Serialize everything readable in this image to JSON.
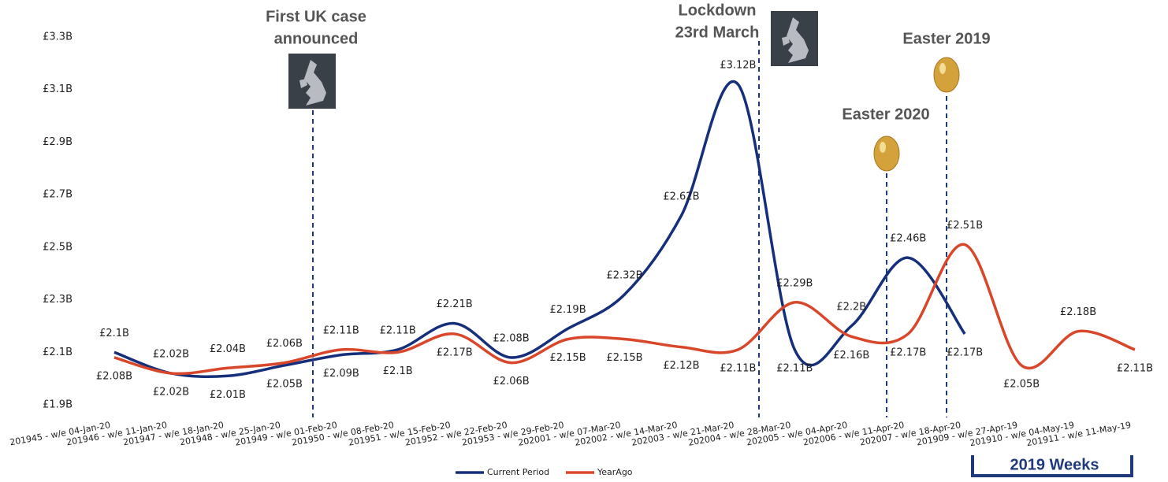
{
  "chart_data": {
    "type": "line",
    "categories": [
      "201945 - w/e 04-Jan-20",
      "201946 - w/e 11-Jan-20",
      "201947 - w/e 18-Jan-20",
      "201948 - w/e 25-Jan-20",
      "201949 - w/e 01-Feb-20",
      "201950 - w/e 08-Feb-20",
      "201951 - w/e 15-Feb-20",
      "201952 - w/e 22-Feb-20",
      "201953 - w/e 29-Feb-20",
      "202001 - w/e 07-Mar-20",
      "202002 - w/e 14-Mar-20",
      "202003 - w/e 21-Mar-20",
      "202004 - w/e 28-Mar-20",
      "202005 - w/e 04-Apr-20",
      "202006 - w/e 11-Apr-20",
      "202007 - w/e 18-Apr-20",
      "201909 - w/e 27-Apr-19",
      "201910 - w/e 04-May-19",
      "201911 - w/e 11-May-19"
    ],
    "series": [
      {
        "name": "Current Period",
        "color": "#162f7a",
        "values": [
          2.1,
          2.02,
          2.01,
          2.05,
          2.09,
          2.11,
          2.21,
          2.08,
          2.19,
          2.32,
          2.62,
          3.12,
          2.11,
          2.2,
          2.46,
          2.17,
          null,
          null,
          null
        ],
        "value_labels": [
          "£2.1B",
          "£2.02B",
          "£2.01B",
          "£2.05B",
          "£2.09B",
          "£2.11B",
          "£2.21B",
          "£2.08B",
          "£2.19B",
          "£2.32B",
          "£2.62B",
          "£3.12B",
          "£2.11B",
          "£2.2B",
          "£2.46B",
          "£2.17B",
          null,
          null,
          null
        ]
      },
      {
        "name": "YearAgo",
        "color": "#d9472b",
        "values": [
          2.08,
          2.02,
          2.04,
          2.06,
          2.11,
          2.1,
          2.17,
          2.06,
          2.15,
          2.15,
          2.12,
          2.11,
          2.29,
          2.16,
          2.17,
          2.51,
          2.05,
          2.18,
          2.11
        ],
        "value_labels": [
          "£2.08B",
          "£2.02B",
          "£2.04B",
          "£2.06B",
          "£2.11B",
          "£2.1B",
          "£2.17B",
          "£2.06B",
          "£2.15B",
          "£2.15B",
          "£2.12B",
          "£2.11B",
          "£2.29B",
          "£2.16B",
          "£2.17B",
          "£2.51B",
          "£2.05B",
          "£2.18B",
          "£2.11B"
        ]
      }
    ],
    "ylim": [
      1.9,
      3.3
    ],
    "yticks": [
      {
        "value": 1.9,
        "label": "£1.9B"
      },
      {
        "value": 2.1,
        "label": "£2.1B"
      },
      {
        "value": 2.3,
        "label": "£2.3B"
      },
      {
        "value": 2.5,
        "label": "£2.5B"
      },
      {
        "value": 2.7,
        "label": "£2.7B"
      },
      {
        "value": 2.9,
        "label": "£2.9B"
      },
      {
        "value": 3.1,
        "label": "£3.1B"
      },
      {
        "value": 3.3,
        "label": "£3.3B"
      }
    ],
    "grid": false,
    "legend": "bottom",
    "annotations": [
      {
        "lines": [
          "First UK case",
          "announced"
        ]
      },
      {
        "lines": [
          "Lockdown",
          "23rd March"
        ]
      },
      {
        "lines": [
          "Easter 2020"
        ]
      },
      {
        "lines": [
          "Easter 2019"
        ]
      }
    ],
    "bracket_label": "2019 Weeks"
  }
}
